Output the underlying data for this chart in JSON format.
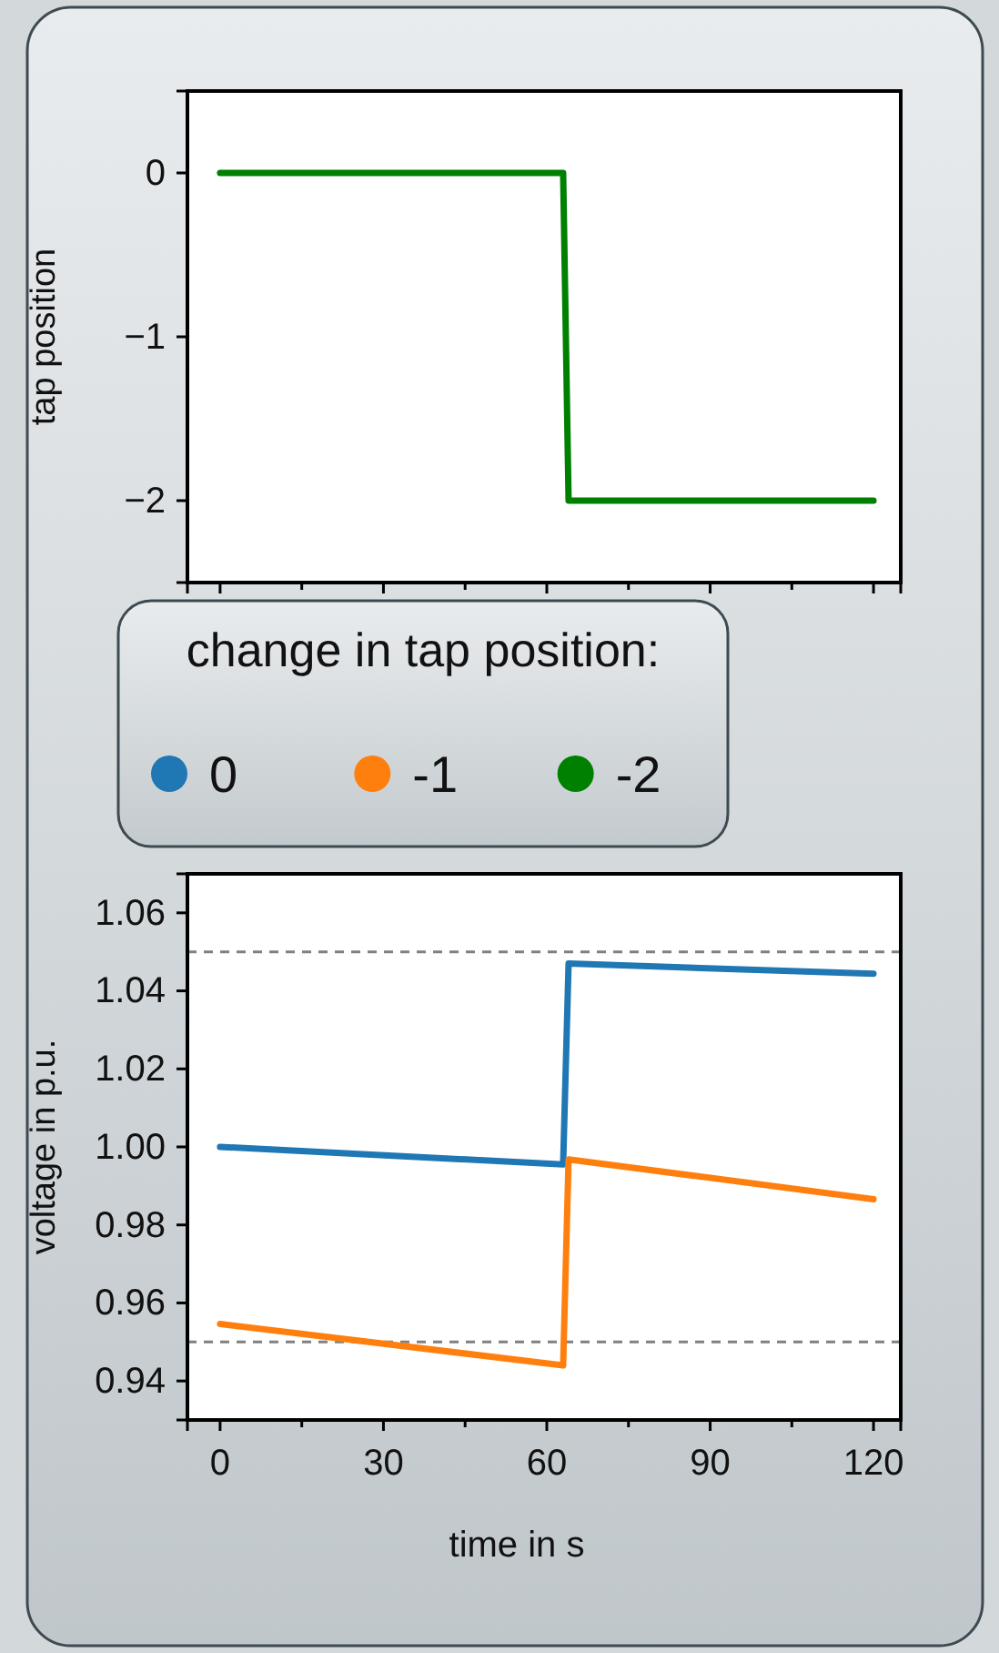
{
  "chart_data": [
    {
      "type": "line",
      "ylabel": "tap position",
      "xlim": [
        -6,
        125
      ],
      "ylim": [
        -2.5,
        0.5
      ],
      "xticks": [
        0,
        {
          "value": 15,
          "label": null
        },
        30,
        {
          "value": 45,
          "label": null
        },
        60,
        {
          "value": 75,
          "label": null
        },
        90,
        {
          "value": 105,
          "label": null
        },
        120
      ],
      "yticks": [
        {
          "value": -2,
          "label": "−2"
        },
        {
          "value": -1,
          "label": "−1"
        },
        0
      ],
      "tick_labels": "y",
      "legend": "bottom",
      "series": [
        {
          "name": "-2",
          "color": "#008000",
          "x": [
            0,
            63,
            64,
            120
          ],
          "values": [
            0,
            0,
            -2,
            -2
          ]
        }
      ]
    },
    {
      "type": "line",
      "xlabel": "time in s",
      "ylabel": "voltage in p.u.",
      "legend_title": "change in tap position:",
      "legend": "top",
      "xlim": [
        -6,
        125
      ],
      "ylim": [
        0.93,
        1.07
      ],
      "xticks": [
        0,
        {
          "value": 15,
          "label": null
        },
        30,
        {
          "value": 45,
          "label": null
        },
        60,
        {
          "value": 75,
          "label": null
        },
        90,
        {
          "value": 105,
          "label": null
        },
        120
      ],
      "yticks": [
        0.94,
        0.96,
        0.98,
        {
          "value": 1.0,
          "label": "1.00"
        },
        1.02,
        1.04,
        1.06
      ],
      "ref_lines": [
        {
          "axis": "y",
          "value": 0.95,
          "color": "#808080",
          "line_style": "dashed"
        },
        {
          "axis": "y",
          "value": 1.05,
          "color": "#808080",
          "line_style": "dashed"
        }
      ],
      "series": [
        {
          "name": "0",
          "color": "#1f77b4",
          "x": [
            0,
            63,
            64,
            120
          ],
          "values": [
            1.0,
            0.9955,
            1.047,
            1.0444
          ]
        },
        {
          "name": "-1",
          "color": "#ff7f0e",
          "x": [
            0,
            63,
            64,
            120
          ],
          "values": [
            0.9546,
            0.944,
            0.9968,
            0.9866
          ]
        }
      ]
    }
  ]
}
